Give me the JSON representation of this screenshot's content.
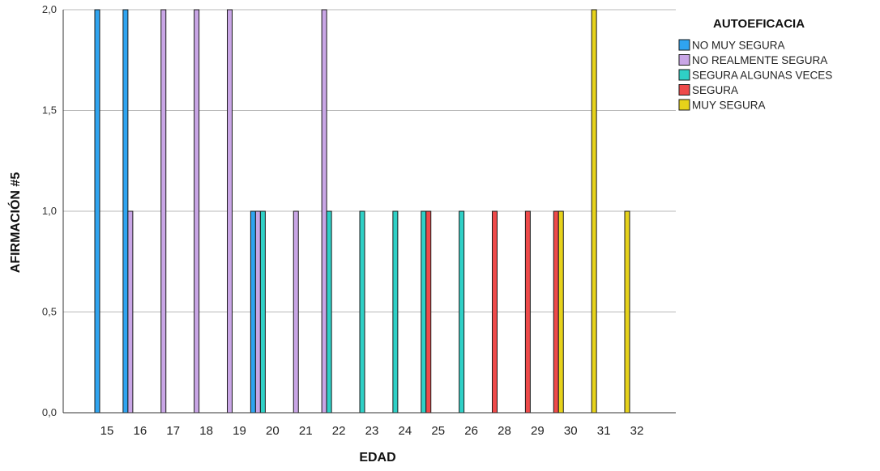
{
  "chart_data": {
    "type": "bar",
    "xlabel": "EDAD",
    "ylabel": "AFIRMACIÓN #5",
    "legend_title": "AUTOEFICACIA",
    "legend_position": "top-right",
    "grid": "horizontal",
    "ylim": [
      0,
      2
    ],
    "yticks": [
      0,
      0.5,
      1,
      1.5,
      2
    ],
    "ytick_labels": [
      "0,0",
      "0,5",
      "1,0",
      "1,5",
      "2,0"
    ],
    "categories": [
      "15",
      "16",
      "17",
      "18",
      "19",
      "20",
      "21",
      "22",
      "23",
      "24",
      "25",
      "26",
      "28",
      "29",
      "30",
      "31",
      "32"
    ],
    "series": [
      {
        "name": "NO MUY SEGURA",
        "color": "#2fa4f0",
        "values": [
          2,
          2,
          null,
          null,
          null,
          1,
          null,
          null,
          null,
          null,
          null,
          null,
          null,
          null,
          null,
          null,
          null
        ]
      },
      {
        "name": "NO REALMENTE SEGURA",
        "color": "#c9a6e6",
        "values": [
          null,
          1,
          2,
          2,
          2,
          1,
          1,
          2,
          null,
          null,
          null,
          null,
          null,
          null,
          null,
          null,
          null
        ]
      },
      {
        "name": "SEGURA ALGUNAS VECES",
        "color": "#2fd0c6",
        "values": [
          null,
          null,
          null,
          null,
          null,
          1,
          null,
          1,
          1,
          1,
          1,
          1,
          null,
          null,
          null,
          null,
          null
        ]
      },
      {
        "name": "SEGURA",
        "color": "#ee4a4a",
        "values": [
          null,
          null,
          null,
          null,
          null,
          null,
          null,
          null,
          null,
          null,
          1,
          null,
          1,
          1,
          1,
          null,
          null
        ]
      },
      {
        "name": "MUY SEGURA",
        "color": "#e6d21a",
        "values": [
          null,
          null,
          null,
          null,
          null,
          null,
          null,
          null,
          null,
          null,
          null,
          null,
          null,
          null,
          1,
          2,
          1
        ]
      }
    ]
  }
}
